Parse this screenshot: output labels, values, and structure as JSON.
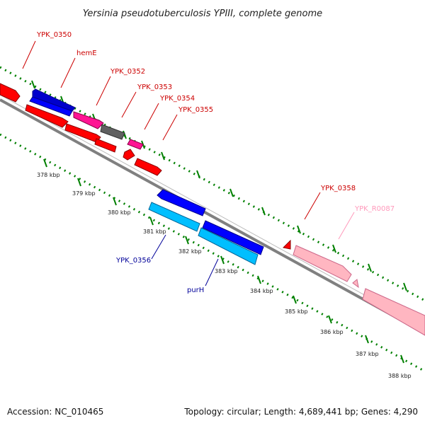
{
  "title": "Yersinia pseudotuberculosis YPIII, complete genome",
  "footer": {
    "accession": "Accession: NC_010465",
    "summary": "Topology: circular; Length: 4,689,441 bp; Genes: 4,290"
  },
  "colors": {
    "forward_cds": "#ff0000",
    "reverse_cds": "#0000ff",
    "reverse_cds_light": "#00bfff",
    "hypothetical": "#ff1493",
    "pseudo": "#606060",
    "rna": "#ffb6c1",
    "label_forward": "#cc0000",
    "label_reverse": "#000099",
    "label_rna": "#ff99bb",
    "tick": "#008000",
    "backbone": "#808080"
  },
  "scale_labels": [
    "378 kbp",
    "379 kbp",
    "380 kbp",
    "381 kbp",
    "382 kbp",
    "383 kbp",
    "384 kbp",
    "385 kbp",
    "386 kbp",
    "387 kbp",
    "388 kbp"
  ],
  "gene_labels": {
    "ypk_0350": "YPK_0350",
    "heme": "hemE",
    "ypk_0352": "YPK_0352",
    "ypk_0353": "YPK_0353",
    "ypk_0354": "YPK_0354",
    "ypk_0355": "YPK_0355",
    "ypk_0358": "YPK_0358",
    "ypk_r0087": "YPK_R0087",
    "ypk_0356": "YPK_0356",
    "purh": "purH"
  }
}
